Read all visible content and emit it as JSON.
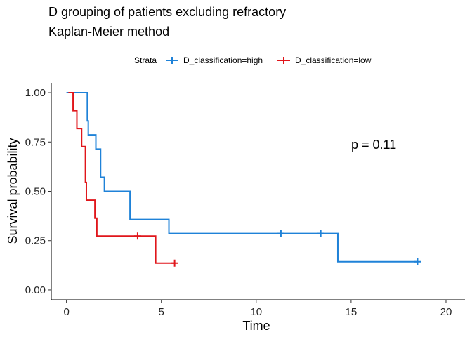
{
  "chart_data": {
    "type": "line",
    "title": "D grouping of patients excluding refractory",
    "subtitle": "Kaplan-Meier method",
    "xlabel": "Time",
    "ylabel": "Survival probability",
    "xlim": [
      -0.8,
      21
    ],
    "ylim": [
      -0.05,
      1.05
    ],
    "x_ticks": [
      0,
      5,
      10,
      15,
      20
    ],
    "y_ticks": [
      0.0,
      0.25,
      0.5,
      0.75,
      1.0
    ],
    "x_tick_labels": [
      "0",
      "5",
      "10",
      "15",
      "20"
    ],
    "y_tick_labels": [
      "0.00",
      "0.25",
      "0.50",
      "0.75",
      "1.00"
    ],
    "grid": false,
    "legend": {
      "title": "Strata",
      "position": "top"
    },
    "annotation": "p = 0.11",
    "series": [
      {
        "name": "D_classification=high",
        "color": "#1f82d8",
        "step_times": [
          0,
          1.1,
          1.15,
          1.3,
          1.55,
          1.8,
          2.0,
          3.35,
          5.4,
          14.3,
          18.5
        ],
        "step_surv": [
          1.0,
          0.857,
          0.786,
          0.786,
          0.714,
          0.571,
          0.5,
          0.357,
          0.286,
          0.143,
          0.143
        ],
        "censor_times": [
          11.3,
          13.4,
          18.5
        ],
        "censor_surv": [
          0.286,
          0.286,
          0.143
        ]
      },
      {
        "name": "D_classification=low",
        "color": "#e0161b",
        "step_times": [
          0.1,
          0.35,
          0.55,
          0.8,
          1.0,
          1.05,
          1.5,
          1.6,
          4.7,
          5.7
        ],
        "step_surv": [
          1.0,
          0.909,
          0.818,
          0.727,
          0.545,
          0.455,
          0.364,
          0.273,
          0.136,
          0.136
        ],
        "censor_times": [
          3.75,
          5.7
        ],
        "censor_surv": [
          0.273,
          0.136
        ]
      }
    ]
  }
}
